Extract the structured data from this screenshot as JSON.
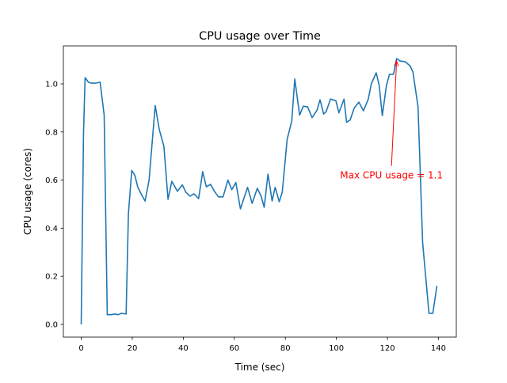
{
  "chart_data": {
    "type": "line",
    "title": "CPU usage over Time",
    "xlabel": "Time (sec)",
    "ylabel": "CPU usage (cores)",
    "xlim": [
      -7,
      147
    ],
    "ylim": [
      -0.053,
      1.158
    ],
    "xticks": [
      0,
      20,
      40,
      60,
      80,
      100,
      120,
      140
    ],
    "yticks": [
      0.0,
      0.2,
      0.4,
      0.6,
      0.8,
      1.0
    ],
    "grid": false,
    "color": "#1f77b4",
    "series": [
      {
        "name": "CPU usage",
        "x": [
          0,
          0.9,
          1.5,
          2.8,
          4,
          5.6,
          7.4,
          9,
          10.2,
          11.7,
          13.3,
          14.5,
          15.8,
          17.6,
          18.5,
          19.8,
          21,
          22.2,
          23.8,
          25,
          26.6,
          29,
          30.6,
          32.4,
          34,
          35.5,
          37.7,
          39.6,
          41,
          42.6,
          44.2,
          46,
          47.6,
          49,
          50.7,
          52.2,
          53.8,
          55.6,
          57.5,
          59,
          60.6,
          62.4,
          65.2,
          67,
          69,
          70.5,
          71.7,
          73.2,
          74.8,
          76,
          77.6,
          78.8,
          80.7,
          82.5,
          83.7,
          85.6,
          87,
          88.7,
          90.5,
          92.4,
          93.6,
          95,
          96,
          97.7,
          99.8,
          101,
          103,
          104,
          105.4,
          107,
          108.8,
          110.6,
          112.5,
          113.7,
          115.6,
          116.8,
          118,
          119.6,
          120.8,
          122.4,
          123.6,
          125,
          127,
          128.9,
          130,
          132,
          133.8,
          135,
          136.3,
          137.8,
          139.4
        ],
        "y": [
          0,
          0.79,
          1.026,
          1.007,
          1.003,
          1.003,
          1.007,
          0.87,
          0.04,
          0.04,
          0.043,
          0.04,
          0.046,
          0.043,
          0.46,
          0.64,
          0.62,
          0.57,
          0.536,
          0.513,
          0.6,
          0.91,
          0.81,
          0.74,
          0.52,
          0.595,
          0.553,
          0.58,
          0.55,
          0.533,
          0.543,
          0.523,
          0.635,
          0.572,
          0.582,
          0.553,
          0.53,
          0.53,
          0.6,
          0.56,
          0.59,
          0.48,
          0.57,
          0.503,
          0.566,
          0.533,
          0.487,
          0.625,
          0.513,
          0.57,
          0.51,
          0.55,
          0.77,
          0.845,
          1.02,
          0.87,
          0.907,
          0.905,
          0.86,
          0.89,
          0.934,
          0.875,
          0.885,
          0.937,
          0.93,
          0.88,
          0.937,
          0.84,
          0.85,
          0.9,
          0.924,
          0.888,
          0.937,
          1.0,
          1.046,
          0.993,
          0.868,
          0.993,
          1.04,
          1.04,
          1.105,
          1.095,
          1.092,
          1.075,
          1.05,
          0.905,
          0.34,
          0.197,
          0.046,
          0.046,
          0.16
        ]
      }
    ],
    "annotations": [
      {
        "text": "Max CPU usage = 1.1",
        "xy": [
          123.6,
          1.105
        ],
        "xytext": [
          121.6,
          0.62
        ],
        "color": "#ff0000"
      }
    ]
  }
}
